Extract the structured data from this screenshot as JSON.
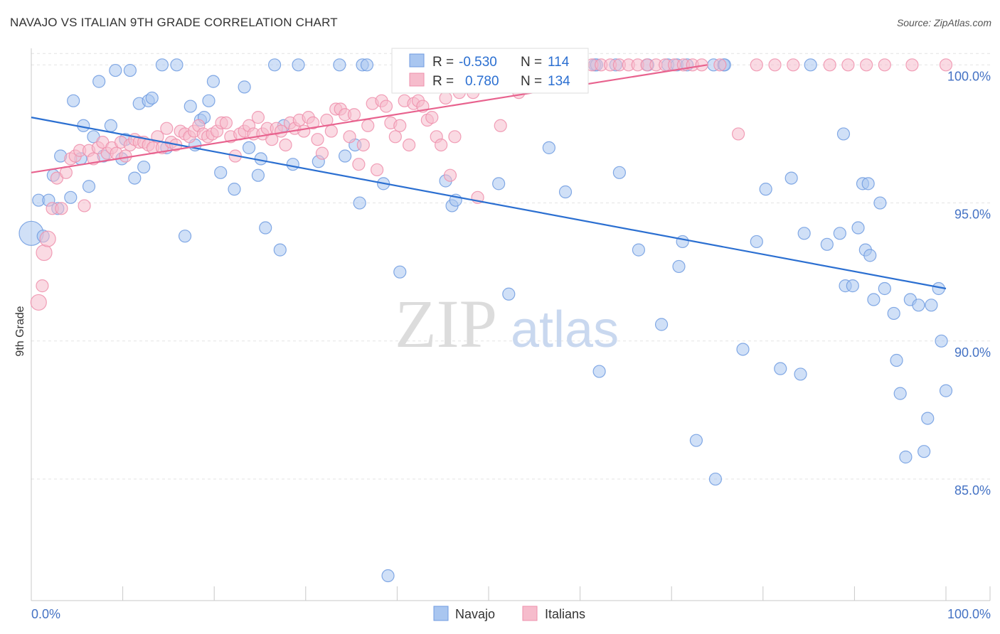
{
  "title": "NAVAJO VS ITALIAN 9TH GRADE CORRELATION CHART",
  "source": "Source: ZipAtlas.com",
  "watermark": {
    "zip": "ZIP",
    "atlas": "atlas"
  },
  "chart_data": {
    "type": "scatter",
    "title": "NAVAJO VS ITALIAN 9TH GRADE CORRELATION CHART",
    "xlabel": "",
    "ylabel": "9th Grade",
    "xlim": [
      0,
      100
    ],
    "ylim": [
      80.6,
      100.6
    ],
    "x_tick_labels": [
      "0.0%",
      "100.0%"
    ],
    "y_ticks": [
      85,
      90,
      95,
      100
    ],
    "y_tick_labels": [
      "85.0%",
      "90.0%",
      "95.0%",
      "100.0%"
    ],
    "grid": true,
    "legend_top": [
      {
        "r_label": "R =",
        "r_value": "-0.530",
        "n_label": "N =",
        "n_value": "114"
      },
      {
        "r_label": "R =",
        "r_value": "0.780",
        "n_label": "N =",
        "n_value": "134"
      }
    ],
    "series": [
      {
        "name": "Navajo",
        "color": "#6f9be0",
        "fill": "#a9c6f0",
        "line_color": "#2b6fd1",
        "trend": {
          "x": [
            0,
            100
          ],
          "y": [
            98.1,
            91.9
          ]
        },
        "points": [
          [
            0,
            93.9
          ],
          [
            0.8,
            95.1
          ],
          [
            1.3,
            93.8
          ],
          [
            1.9,
            95.1
          ],
          [
            2.4,
            96.0
          ],
          [
            2.9,
            94.8
          ],
          [
            3.2,
            96.7
          ],
          [
            4.3,
            95.2
          ],
          [
            4.6,
            98.7
          ],
          [
            5.4,
            96.6
          ],
          [
            5.7,
            97.8
          ],
          [
            6.3,
            95.6
          ],
          [
            6.8,
            97.4
          ],
          [
            7.4,
            99.4
          ],
          [
            7.9,
            96.7
          ],
          [
            8.7,
            97.8
          ],
          [
            9.2,
            99.8
          ],
          [
            9.9,
            96.6
          ],
          [
            10.3,
            97.3
          ],
          [
            10.8,
            99.8
          ],
          [
            11.3,
            95.9
          ],
          [
            11.8,
            98.6
          ],
          [
            12.3,
            96.3
          ],
          [
            12.8,
            98.7
          ],
          [
            13.2,
            98.8
          ],
          [
            14.3,
            100
          ],
          [
            14.8,
            97.0
          ],
          [
            15.9,
            100
          ],
          [
            16.8,
            93.8
          ],
          [
            17.4,
            98.5
          ],
          [
            17.9,
            97.1
          ],
          [
            18.5,
            98.0
          ],
          [
            18.9,
            98.1
          ],
          [
            19.4,
            98.7
          ],
          [
            19.9,
            99.4
          ],
          [
            20.7,
            96.1
          ],
          [
            22.2,
            95.5
          ],
          [
            23.3,
            99.2
          ],
          [
            23.8,
            97.0
          ],
          [
            24.8,
            96.0
          ],
          [
            25.1,
            96.6
          ],
          [
            25.6,
            94.1
          ],
          [
            26.6,
            100
          ],
          [
            27.2,
            93.3
          ],
          [
            27.6,
            97.8
          ],
          [
            28.6,
            96.4
          ],
          [
            29.2,
            100
          ],
          [
            31.4,
            96.5
          ],
          [
            33.7,
            100
          ],
          [
            34.3,
            96.7
          ],
          [
            35.4,
            97.1
          ],
          [
            35.9,
            95.0
          ],
          [
            36.2,
            100
          ],
          [
            36.7,
            100
          ],
          [
            38.5,
            95.7
          ],
          [
            40.3,
            92.5
          ],
          [
            45.3,
            95.8
          ],
          [
            46.0,
            94.9
          ],
          [
            46.4,
            95.1
          ],
          [
            51.1,
            95.7
          ],
          [
            52.2,
            91.7
          ],
          [
            53.6,
            100
          ],
          [
            56.6,
            97.0
          ],
          [
            58.4,
            95.4
          ],
          [
            61.6,
            100
          ],
          [
            61.8,
            100
          ],
          [
            62.1,
            88.9
          ],
          [
            63.9,
            100
          ],
          [
            64.3,
            96.1
          ],
          [
            66.4,
            93.3
          ],
          [
            67.4,
            100
          ],
          [
            68.9,
            90.6
          ],
          [
            69.6,
            100
          ],
          [
            70.6,
            100
          ],
          [
            70.8,
            92.7
          ],
          [
            71.2,
            93.6
          ],
          [
            71.7,
            100
          ],
          [
            72.7,
            86.4
          ],
          [
            74.6,
            100
          ],
          [
            74.8,
            85.0
          ],
          [
            75.7,
            100
          ],
          [
            75.8,
            100
          ],
          [
            77.8,
            89.7
          ],
          [
            79.3,
            93.6
          ],
          [
            80.3,
            95.5
          ],
          [
            81.9,
            89.0
          ],
          [
            83.1,
            95.9
          ],
          [
            84.1,
            88.8
          ],
          [
            84.5,
            93.9
          ],
          [
            85.2,
            100
          ],
          [
            87.0,
            93.5
          ],
          [
            88.4,
            93.9
          ],
          [
            88.8,
            97.5
          ],
          [
            89.0,
            92.0
          ],
          [
            89.8,
            92.0
          ],
          [
            90.4,
            94.1
          ],
          [
            90.9,
            95.7
          ],
          [
            91.2,
            93.3
          ],
          [
            91.5,
            95.7
          ],
          [
            91.7,
            93.1
          ],
          [
            92.1,
            91.5
          ],
          [
            92.8,
            95.0
          ],
          [
            93.3,
            91.9
          ],
          [
            94.3,
            91.0
          ],
          [
            94.6,
            89.3
          ],
          [
            95.0,
            88.1
          ],
          [
            95.6,
            85.8
          ],
          [
            96.1,
            91.5
          ],
          [
            97.0,
            91.3
          ],
          [
            97.6,
            86.0
          ],
          [
            98.0,
            87.2
          ],
          [
            98.4,
            91.3
          ],
          [
            99.2,
            91.9
          ],
          [
            99.5,
            90.0
          ],
          [
            100,
            88.2
          ],
          [
            39,
            81.5
          ]
        ]
      },
      {
        "name": "Italians",
        "color": "#ee8fab",
        "fill": "#f6bccc",
        "line_color": "#e8628e",
        "trend": {
          "x": [
            0,
            73.9
          ],
          "y": [
            96.1,
            100
          ]
        },
        "points": [
          [
            0.8,
            91.4
          ],
          [
            1.4,
            93.2
          ],
          [
            1.8,
            93.7
          ],
          [
            2.3,
            94.8
          ],
          [
            2.8,
            95.9
          ],
          [
            3.3,
            94.8
          ],
          [
            3.8,
            96.1
          ],
          [
            4.3,
            96.6
          ],
          [
            4.8,
            96.7
          ],
          [
            5.3,
            96.9
          ],
          [
            5.8,
            94.9
          ],
          [
            6.3,
            96.9
          ],
          [
            6.8,
            96.6
          ],
          [
            7.3,
            97.0
          ],
          [
            7.8,
            97.2
          ],
          [
            8.3,
            96.8
          ],
          [
            8.8,
            97.0
          ],
          [
            9.3,
            96.8
          ],
          [
            9.8,
            97.2
          ],
          [
            10.3,
            96.7
          ],
          [
            10.8,
            97.1
          ],
          [
            11.3,
            97.3
          ],
          [
            11.8,
            97.2
          ],
          [
            12.3,
            97.2
          ],
          [
            12.8,
            97.1
          ],
          [
            13.3,
            97.0
          ],
          [
            13.8,
            97.4
          ],
          [
            14.3,
            97.0
          ],
          [
            14.8,
            97.7
          ],
          [
            15.3,
            97.2
          ],
          [
            15.8,
            97.1
          ],
          [
            16.3,
            97.6
          ],
          [
            16.8,
            97.5
          ],
          [
            17.3,
            97.4
          ],
          [
            17.8,
            97.6
          ],
          [
            18.3,
            97.8
          ],
          [
            18.8,
            97.5
          ],
          [
            19.3,
            97.4
          ],
          [
            19.8,
            97.5
          ],
          [
            20.3,
            97.6
          ],
          [
            20.8,
            97.9
          ],
          [
            21.3,
            97.9
          ],
          [
            21.8,
            97.4
          ],
          [
            22.3,
            96.7
          ],
          [
            22.8,
            97.5
          ],
          [
            23.3,
            97.6
          ],
          [
            23.8,
            97.8
          ],
          [
            24.3,
            97.5
          ],
          [
            24.8,
            98.1
          ],
          [
            25.3,
            97.5
          ],
          [
            25.8,
            97.7
          ],
          [
            26.3,
            97.3
          ],
          [
            26.8,
            97.7
          ],
          [
            27.3,
            97.6
          ],
          [
            27.8,
            97.1
          ],
          [
            28.3,
            97.9
          ],
          [
            28.8,
            97.7
          ],
          [
            29.3,
            98.0
          ],
          [
            29.8,
            97.6
          ],
          [
            30.3,
            98.1
          ],
          [
            30.8,
            97.9
          ],
          [
            31.3,
            97.3
          ],
          [
            31.8,
            96.8
          ],
          [
            32.3,
            98.0
          ],
          [
            32.8,
            97.6
          ],
          [
            33.3,
            98.4
          ],
          [
            33.8,
            98.4
          ],
          [
            34.3,
            98.2
          ],
          [
            34.8,
            97.4
          ],
          [
            35.3,
            98.2
          ],
          [
            35.8,
            96.4
          ],
          [
            36.3,
            97.1
          ],
          [
            36.8,
            97.8
          ],
          [
            37.3,
            98.6
          ],
          [
            37.8,
            96.2
          ],
          [
            38.3,
            98.7
          ],
          [
            38.8,
            98.5
          ],
          [
            39.3,
            97.9
          ],
          [
            39.8,
            97.4
          ],
          [
            40.3,
            97.8
          ],
          [
            40.8,
            98.7
          ],
          [
            41.3,
            97.1
          ],
          [
            41.8,
            98.6
          ],
          [
            42.3,
            98.7
          ],
          [
            42.8,
            98.5
          ],
          [
            43.3,
            98.0
          ],
          [
            43.8,
            98.1
          ],
          [
            44.3,
            97.4
          ],
          [
            44.8,
            97.1
          ],
          [
            45.3,
            98.8
          ],
          [
            45.8,
            96.0
          ],
          [
            46.3,
            97.4
          ],
          [
            46.8,
            99.0
          ],
          [
            47.3,
            99.2
          ],
          [
            47.8,
            100
          ],
          [
            48.3,
            99.0
          ],
          [
            48.8,
            95.2
          ],
          [
            49.3,
            100
          ],
          [
            49.8,
            99.4
          ],
          [
            50.3,
            100
          ],
          [
            50.8,
            99.4
          ],
          [
            51.3,
            97.8
          ],
          [
            51.8,
            99.5
          ],
          [
            52.3,
            100
          ],
          [
            52.8,
            99.7
          ],
          [
            53.3,
            99.0
          ],
          [
            53.8,
            100
          ],
          [
            54.3,
            100
          ],
          [
            55.3,
            100
          ],
          [
            56.3,
            100
          ],
          [
            57.3,
            100
          ],
          [
            58.3,
            100
          ],
          [
            59.3,
            100
          ],
          [
            60.3,
            100
          ],
          [
            61.3,
            100
          ],
          [
            62.3,
            100
          ],
          [
            63.3,
            100
          ],
          [
            64.3,
            100
          ],
          [
            65.3,
            100
          ],
          [
            66.3,
            100
          ],
          [
            67.3,
            100
          ],
          [
            68.3,
            100
          ],
          [
            69.3,
            100
          ],
          [
            70.3,
            100
          ],
          [
            71.3,
            100
          ],
          [
            72.3,
            100
          ],
          [
            73.3,
            100
          ],
          [
            75.3,
            100
          ],
          [
            77.3,
            97.5
          ],
          [
            79.3,
            100
          ],
          [
            81.3,
            100
          ],
          [
            83.3,
            100
          ],
          [
            87.3,
            100
          ],
          [
            89.3,
            100
          ],
          [
            91.3,
            100
          ],
          [
            93.3,
            100
          ],
          [
            96.3,
            100
          ],
          [
            100,
            100
          ],
          [
            1.2,
            92.0
          ]
        ]
      }
    ]
  }
}
